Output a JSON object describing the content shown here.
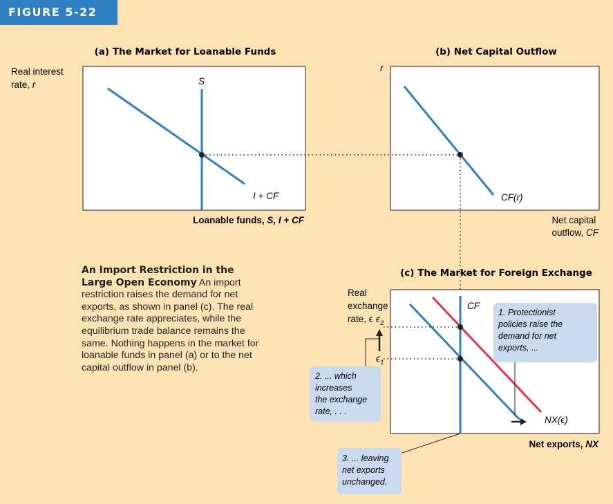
{
  "figure_label": "FIGURE 5-22",
  "panel_a": {
    "title": "(a) The Market for Loanable Funds",
    "y_axis_label": [
      "Real interest",
      "rate, r"
    ],
    "x_axis_label": "Loanable funds, S, I + CF",
    "supply_label": "S",
    "demand_label": "I + CF"
  },
  "panel_b": {
    "title": "(b) Net Capital Outflow",
    "y_axis_label": "r",
    "x_axis_label": [
      "Net capital",
      "outflow, CF"
    ],
    "curve_label": "CF(r)"
  },
  "panel_c": {
    "title": "(c) The Market for Foreign Exchange",
    "y_axis_label": [
      "Real",
      "exchange",
      "rate, ϵ"
    ],
    "x_axis_label": "Net exports, NX",
    "cf_label": "CF",
    "nx_label": "NX(ϵ)",
    "eps1": "ϵ",
    "eps1_sub": "1",
    "eps2": "ϵ",
    "eps2_sub": "2",
    "colors": {
      "old_nx": "#2e7fc1",
      "new_nx": "#e2344f",
      "cf": "#2e7fc1"
    }
  },
  "callouts": {
    "c1": [
      "1. Protectionist",
      "policies raise the",
      "demand for net",
      "exports, ..."
    ],
    "c2": [
      "2. ... which",
      "increases",
      "the exchange",
      "rate, . . ."
    ],
    "c3": [
      "3. ... leaving",
      "net exports",
      "unchanged."
    ]
  },
  "caption": {
    "title": "An Import Restriction in the Large Open Economy",
    "body": "An import restriction raises the demand for net exports, as shown in panel (c). The real exchange rate appreciates, while the equilibrium trade balance remains the same. Nothing happens in the market for loanable funds in panel (a) or to the net capital outflow in panel (b)."
  }
}
